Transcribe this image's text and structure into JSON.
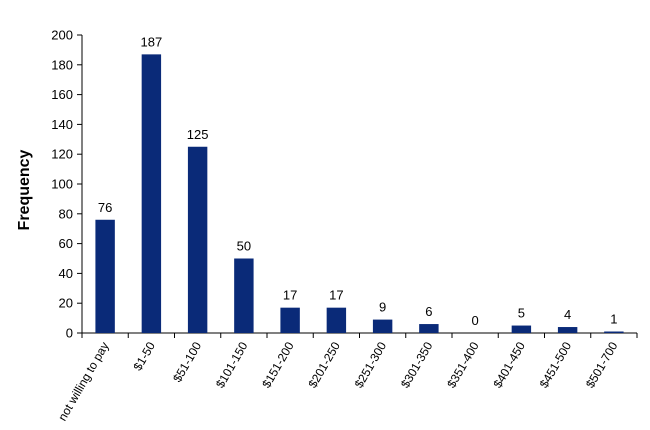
{
  "chart_data": {
    "type": "bar",
    "title": "",
    "xlabel": "",
    "ylabel": "Frequency",
    "ylim": [
      0,
      200
    ],
    "yticks": [
      0,
      20,
      40,
      60,
      80,
      100,
      120,
      140,
      160,
      180,
      200
    ],
    "grid": false,
    "legend": "none",
    "bar_color": "#0a2a78",
    "categories": [
      "not willing to pay",
      "$1-50",
      "$51-100",
      "$101-150",
      "$151-200",
      "$201-250",
      "$251-300",
      "$301-350",
      "$351-400",
      "$401-450",
      "$451-500",
      "$501-700"
    ],
    "values": [
      76,
      187,
      125,
      50,
      17,
      17,
      9,
      6,
      0,
      5,
      4,
      1
    ],
    "data_labels": [
      "76",
      "187",
      "125",
      "50",
      "17",
      "17",
      "9",
      "6",
      "0",
      "5",
      "4",
      "1"
    ]
  }
}
